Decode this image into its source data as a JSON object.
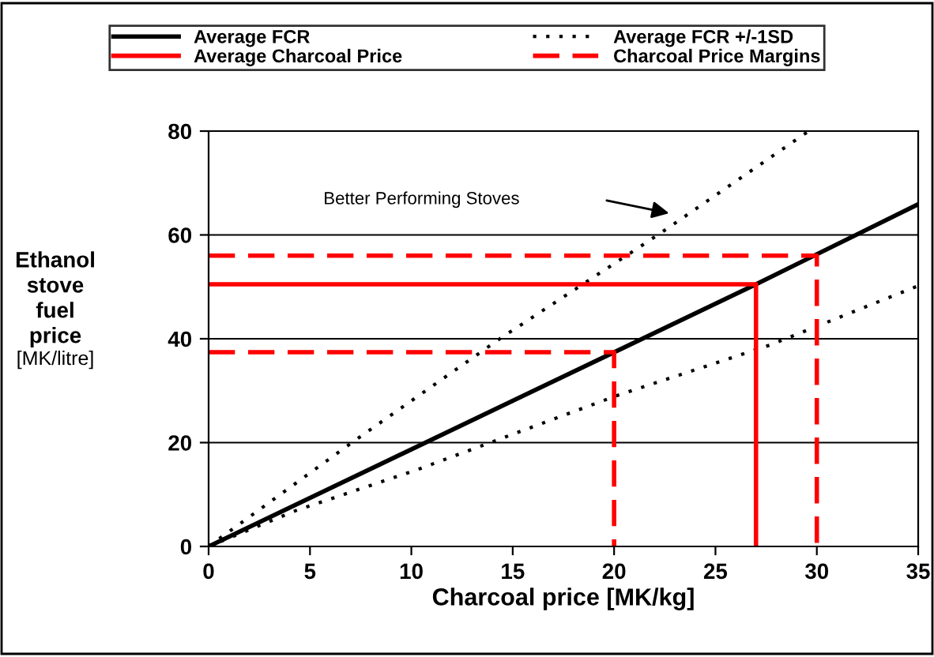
{
  "chart_data": {
    "type": "line",
    "xlabel": "Charcoal price [MK/kg]",
    "ylabel": "Ethanol\nstove\nfuel\nprice\n[MK/litre]",
    "xlim": [
      0,
      35
    ],
    "xticks": [
      0,
      5,
      10,
      15,
      20,
      25,
      30,
      35
    ],
    "ylim": [
      0,
      80
    ],
    "yticks": [
      0,
      20,
      40,
      60,
      80
    ],
    "grid": "y",
    "legend": "top",
    "marker": "none",
    "series": [
      {
        "name": "Average FCR",
        "color": "#000000",
        "line_style": "solid",
        "x": [
          0,
          27,
          35
        ],
        "values": [
          0,
          50.5,
          65.9
        ]
      },
      {
        "name": "Average FCR +/-1SD",
        "color": "#000000",
        "line_style": "dotted",
        "x": [
          0,
          7.1,
          14.4,
          22.2,
          29.6,
          null,
          0,
          4.3,
          10.3,
          20.1,
          27.7,
          35
        ],
        "values": [
          0,
          20.1,
          40.1,
          60.1,
          80,
          null,
          0,
          6.9,
          14.8,
          29.0,
          38.8,
          50.2
        ]
      },
      {
        "name": "Average Charcoal Price",
        "color": "#ff0000",
        "line_style": "solid",
        "x": [
          0,
          27,
          27
        ],
        "values": [
          50.5,
          50.5,
          0
        ]
      },
      {
        "name": "Charcoal Price Margins",
        "color": "#ff0000",
        "line_style": "dashed",
        "x": [
          0,
          20,
          20,
          null,
          0,
          30,
          30
        ],
        "values": [
          37.4,
          37.4,
          0,
          null,
          56,
          56,
          0
        ]
      }
    ],
    "annotations": [
      "Better Performing Stoves"
    ]
  }
}
